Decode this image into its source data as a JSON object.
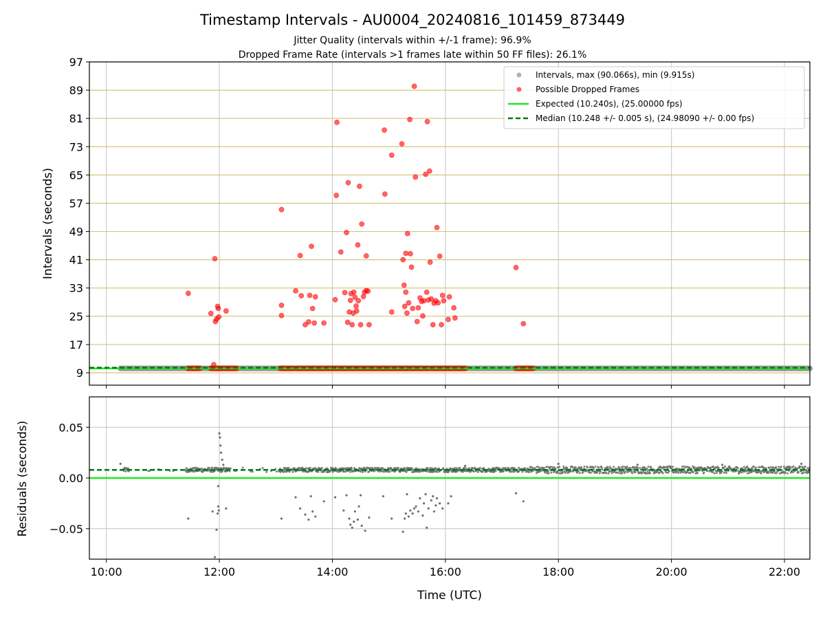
{
  "figure": {
    "title": "Timestamp Intervals - AU0004_20240816_101459_873449",
    "subtitle_1": "Jitter Quality (intervals within +/-1 frame): 96.9%",
    "subtitle_2": "Dropped Frame Rate (intervals >1 frames late within 50 FF files): 26.1%",
    "xlabel": "Time (UTC)"
  },
  "colors": {
    "intervals": "#808080",
    "dropped": "#ff0000",
    "expected": "#1ee81e",
    "median": "#007a00",
    "hgrid": "#d4c47c",
    "vgrid": "#cccccc",
    "residual_points": "#6e6e6e"
  },
  "chart_data": [
    {
      "type": "scatter",
      "ylabel": "Intervals (seconds)",
      "xlim_hours": [
        9.7,
        22.45
      ],
      "ylim": [
        5.5,
        97
      ],
      "yticks": [
        9,
        17,
        25,
        33,
        41,
        49,
        57,
        65,
        73,
        81,
        89,
        97
      ],
      "xticks": [
        "10:00",
        "12:00",
        "14:00",
        "16:00",
        "18:00",
        "20:00",
        "22:00"
      ],
      "grid": true,
      "legend_position": "top-right",
      "legend": [
        "Intervals, max (90.066s), min (9.915s)",
        "Possible Dropped Frames",
        "Expected (10.240s), (25.00000 fps)",
        "Median (10.248 +/- 0.005 s), (24.98090 +/- 0.00 fps)"
      ],
      "expected_line": 10.24,
      "median_line": 10.248,
      "intervals_band": {
        "x_from": 10.25,
        "x_to": 22.45,
        "y": 10.25
      },
      "dropped_band_segments": [
        [
          11.45,
          11.65
        ],
        [
          11.85,
          12.3
        ],
        [
          13.08,
          13.3
        ],
        [
          13.35,
          14.9
        ],
        [
          14.9,
          15.3
        ],
        [
          15.3,
          15.7
        ],
        [
          15.75,
          16.35
        ],
        [
          17.25,
          17.55
        ]
      ],
      "dropped_points": [
        {
          "x": 11.45,
          "y": 31.5
        },
        {
          "x": 11.85,
          "y": 25.8
        },
        {
          "x": 11.92,
          "y": 41.3
        },
        {
          "x": 11.93,
          "y": 23.5
        },
        {
          "x": 11.95,
          "y": 24.2
        },
        {
          "x": 11.97,
          "y": 27.8
        },
        {
          "x": 11.98,
          "y": 27.2
        },
        {
          "x": 11.99,
          "y": 24.8
        },
        {
          "x": 12.12,
          "y": 26.5
        },
        {
          "x": 11.9,
          "y": 11.3
        },
        {
          "x": 13.1,
          "y": 55.2
        },
        {
          "x": 13.1,
          "y": 28.1
        },
        {
          "x": 13.1,
          "y": 25.2
        },
        {
          "x": 13.35,
          "y": 32.2
        },
        {
          "x": 13.43,
          "y": 42.2
        },
        {
          "x": 13.45,
          "y": 30.8
        },
        {
          "x": 13.52,
          "y": 22.6
        },
        {
          "x": 13.58,
          "y": 23.4
        },
        {
          "x": 13.6,
          "y": 30.9
        },
        {
          "x": 13.63,
          "y": 44.8
        },
        {
          "x": 13.65,
          "y": 27.2
        },
        {
          "x": 13.68,
          "y": 23.1
        },
        {
          "x": 13.7,
          "y": 30.5
        },
        {
          "x": 13.85,
          "y": 23.1
        },
        {
          "x": 14.05,
          "y": 29.7
        },
        {
          "x": 14.07,
          "y": 59.2
        },
        {
          "x": 14.08,
          "y": 79.9
        },
        {
          "x": 14.15,
          "y": 43.2
        },
        {
          "x": 14.22,
          "y": 31.7
        },
        {
          "x": 14.25,
          "y": 48.7
        },
        {
          "x": 14.27,
          "y": 23.3
        },
        {
          "x": 14.28,
          "y": 62.8
        },
        {
          "x": 14.3,
          "y": 26.2
        },
        {
          "x": 14.32,
          "y": 29.5
        },
        {
          "x": 14.33,
          "y": 31.4
        },
        {
          "x": 14.35,
          "y": 22.6
        },
        {
          "x": 14.37,
          "y": 25.9
        },
        {
          "x": 14.38,
          "y": 31.8
        },
        {
          "x": 14.4,
          "y": 30.4
        },
        {
          "x": 14.42,
          "y": 27.9
        },
        {
          "x": 14.43,
          "y": 26.5
        },
        {
          "x": 14.45,
          "y": 45.2
        },
        {
          "x": 14.46,
          "y": 29.4
        },
        {
          "x": 14.48,
          "y": 61.8
        },
        {
          "x": 14.5,
          "y": 22.6
        },
        {
          "x": 14.52,
          "y": 51.1
        },
        {
          "x": 14.55,
          "y": 30.6
        },
        {
          "x": 14.57,
          "y": 31.8
        },
        {
          "x": 14.6,
          "y": 42.1
        },
        {
          "x": 14.6,
          "y": 32.3
        },
        {
          "x": 14.63,
          "y": 32.1
        },
        {
          "x": 14.65,
          "y": 22.6
        },
        {
          "x": 14.92,
          "y": 77.7
        },
        {
          "x": 14.93,
          "y": 59.6
        },
        {
          "x": 15.05,
          "y": 70.6
        },
        {
          "x": 15.05,
          "y": 26.2
        },
        {
          "x": 15.23,
          "y": 73.8
        },
        {
          "x": 15.25,
          "y": 41.0
        },
        {
          "x": 15.27,
          "y": 33.8
        },
        {
          "x": 15.28,
          "y": 27.8
        },
        {
          "x": 15.3,
          "y": 42.8
        },
        {
          "x": 15.3,
          "y": 31.8
        },
        {
          "x": 15.32,
          "y": 25.9
        },
        {
          "x": 15.33,
          "y": 48.4
        },
        {
          "x": 15.35,
          "y": 28.8
        },
        {
          "x": 15.37,
          "y": 80.7
        },
        {
          "x": 15.38,
          "y": 42.7
        },
        {
          "x": 15.4,
          "y": 38.9
        },
        {
          "x": 15.42,
          "y": 27.2
        },
        {
          "x": 15.45,
          "y": 90.1
        },
        {
          "x": 15.47,
          "y": 64.4
        },
        {
          "x": 15.5,
          "y": 23.5
        },
        {
          "x": 15.52,
          "y": 27.4
        },
        {
          "x": 15.55,
          "y": 30.2
        },
        {
          "x": 15.58,
          "y": 29.2
        },
        {
          "x": 15.6,
          "y": 25.1
        },
        {
          "x": 15.62,
          "y": 29.4
        },
        {
          "x": 15.65,
          "y": 65.2
        },
        {
          "x": 15.67,
          "y": 31.8
        },
        {
          "x": 15.68,
          "y": 80.1
        },
        {
          "x": 15.7,
          "y": 29.6
        },
        {
          "x": 15.72,
          "y": 66.1
        },
        {
          "x": 15.73,
          "y": 40.3
        },
        {
          "x": 15.75,
          "y": 29.9
        },
        {
          "x": 15.78,
          "y": 22.6
        },
        {
          "x": 15.8,
          "y": 28.7
        },
        {
          "x": 15.83,
          "y": 29.4
        },
        {
          "x": 15.85,
          "y": 50.1
        },
        {
          "x": 15.87,
          "y": 28.8
        },
        {
          "x": 15.9,
          "y": 42.0
        },
        {
          "x": 15.93,
          "y": 22.6
        },
        {
          "x": 15.95,
          "y": 30.9
        },
        {
          "x": 15.97,
          "y": 29.4
        },
        {
          "x": 16.05,
          "y": 24.1
        },
        {
          "x": 16.07,
          "y": 30.5
        },
        {
          "x": 16.15,
          "y": 27.4
        },
        {
          "x": 16.17,
          "y": 24.5
        },
        {
          "x": 17.25,
          "y": 38.8
        },
        {
          "x": 17.38,
          "y": 22.9
        }
      ]
    },
    {
      "type": "scatter",
      "ylabel": "Residuals (seconds)",
      "xlabel": "Time (UTC)",
      "xlim_hours": [
        9.7,
        22.45
      ],
      "ylim": [
        -0.08,
        0.08
      ],
      "yticks": [
        0.05,
        0.0,
        -0.05
      ],
      "ytick_labels": [
        "0.05",
        "0.00",
        "−0.05"
      ],
      "xticks": [
        "10:00",
        "12:00",
        "14:00",
        "16:00",
        "18:00",
        "20:00",
        "22:00"
      ],
      "grid": true,
      "expected_residual": 0.0,
      "median_residual": 0.008,
      "dense_band": {
        "x_from": 10.3,
        "x_to": 22.45,
        "y_center": 0.008
      },
      "outliers": [
        {
          "x": 10.25,
          "y": 0.014
        },
        {
          "x": 11.45,
          "y": -0.04
        },
        {
          "x": 11.88,
          "y": -0.033
        },
        {
          "x": 11.92,
          "y": -0.078
        },
        {
          "x": 11.95,
          "y": -0.051
        },
        {
          "x": 11.97,
          "y": -0.035
        },
        {
          "x": 11.98,
          "y": -0.028
        },
        {
          "x": 11.99,
          "y": -0.032
        },
        {
          "x": 12.0,
          "y": 0.044
        },
        {
          "x": 12.01,
          "y": 0.04
        },
        {
          "x": 12.02,
          "y": 0.032
        },
        {
          "x": 12.03,
          "y": 0.025
        },
        {
          "x": 12.05,
          "y": 0.018
        },
        {
          "x": 12.07,
          "y": 0.013
        },
        {
          "x": 12.12,
          "y": -0.03
        },
        {
          "x": 11.98,
          "y": -0.008
        },
        {
          "x": 13.1,
          "y": -0.04
        },
        {
          "x": 13.35,
          "y": -0.019
        },
        {
          "x": 13.43,
          "y": -0.03
        },
        {
          "x": 13.52,
          "y": -0.036
        },
        {
          "x": 13.58,
          "y": -0.041
        },
        {
          "x": 13.62,
          "y": -0.018
        },
        {
          "x": 13.65,
          "y": -0.033
        },
        {
          "x": 13.7,
          "y": -0.038
        },
        {
          "x": 13.85,
          "y": -0.023
        },
        {
          "x": 14.05,
          "y": -0.019
        },
        {
          "x": 14.2,
          "y": -0.032
        },
        {
          "x": 14.25,
          "y": -0.017
        },
        {
          "x": 14.3,
          "y": -0.04
        },
        {
          "x": 14.32,
          "y": -0.046
        },
        {
          "x": 14.35,
          "y": -0.049
        },
        {
          "x": 14.38,
          "y": -0.043
        },
        {
          "x": 14.4,
          "y": -0.033
        },
        {
          "x": 14.45,
          "y": -0.041
        },
        {
          "x": 14.47,
          "y": -0.028
        },
        {
          "x": 14.5,
          "y": -0.017
        },
        {
          "x": 14.52,
          "y": -0.047
        },
        {
          "x": 14.58,
          "y": -0.052
        },
        {
          "x": 14.65,
          "y": -0.039
        },
        {
          "x": 14.9,
          "y": -0.018
        },
        {
          "x": 15.05,
          "y": -0.04
        },
        {
          "x": 15.25,
          "y": -0.053
        },
        {
          "x": 15.28,
          "y": -0.04
        },
        {
          "x": 15.3,
          "y": -0.035
        },
        {
          "x": 15.32,
          "y": -0.016
        },
        {
          "x": 15.35,
          "y": -0.038
        },
        {
          "x": 15.38,
          "y": -0.032
        },
        {
          "x": 15.42,
          "y": -0.035
        },
        {
          "x": 15.45,
          "y": -0.03
        },
        {
          "x": 15.48,
          "y": -0.028
        },
        {
          "x": 15.52,
          "y": -0.033
        },
        {
          "x": 15.55,
          "y": -0.02
        },
        {
          "x": 15.6,
          "y": -0.037
        },
        {
          "x": 15.62,
          "y": -0.025
        },
        {
          "x": 15.65,
          "y": -0.016
        },
        {
          "x": 15.67,
          "y": -0.049
        },
        {
          "x": 15.7,
          "y": -0.03
        },
        {
          "x": 15.75,
          "y": -0.022
        },
        {
          "x": 15.78,
          "y": -0.018
        },
        {
          "x": 15.8,
          "y": -0.033
        },
        {
          "x": 15.83,
          "y": -0.027
        },
        {
          "x": 15.85,
          "y": -0.02
        },
        {
          "x": 15.9,
          "y": -0.025
        },
        {
          "x": 15.95,
          "y": -0.03
        },
        {
          "x": 16.05,
          "y": -0.025
        },
        {
          "x": 16.1,
          "y": -0.018
        },
        {
          "x": 17.25,
          "y": -0.015
        },
        {
          "x": 17.38,
          "y": -0.023
        },
        {
          "x": 16.35,
          "y": 0.012
        },
        {
          "x": 18.0,
          "y": 0.014
        },
        {
          "x": 19.4,
          "y": 0.013
        },
        {
          "x": 20.9,
          "y": 0.013
        },
        {
          "x": 22.3,
          "y": 0.014
        }
      ]
    }
  ]
}
